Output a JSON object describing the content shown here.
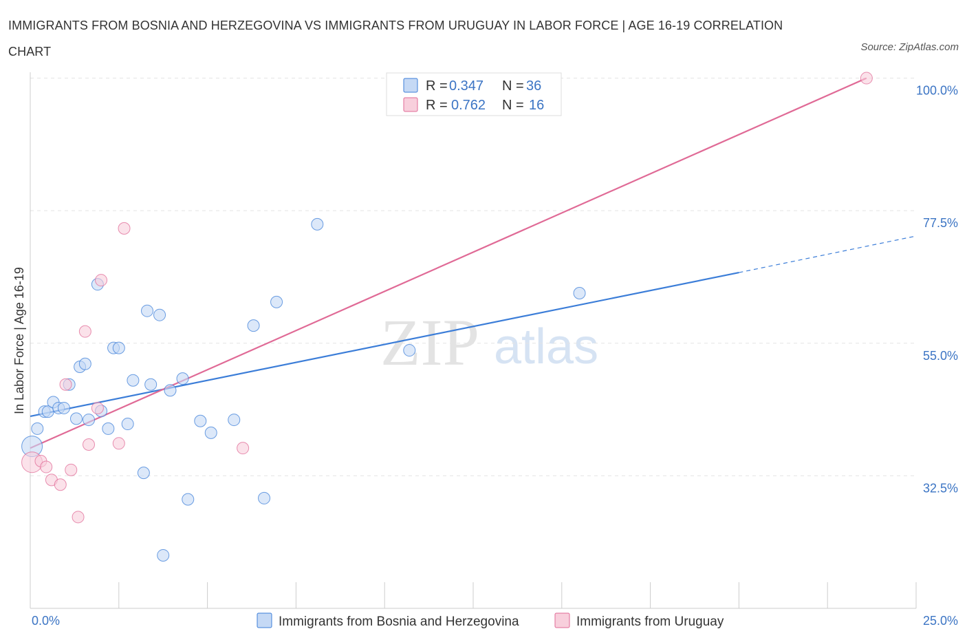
{
  "title": "IMMIGRANTS FROM BOSNIA AND HERZEGOVINA VS IMMIGRANTS FROM URUGUAY IN LABOR FORCE | AGE 16-19 CORRELATION CHART",
  "source": "Source: ZipAtlas.com",
  "watermark": {
    "zip": "ZIP",
    "atlas": "atlas"
  },
  "colors": {
    "blue": "#3b7dd8",
    "blue_fill": "#c5d9f5",
    "pink": "#e06a96",
    "pink_fill": "#f8cfdc",
    "axis_label": "#3b74c4"
  },
  "chart_data": {
    "type": "scatter",
    "title": "IMMIGRANTS FROM BOSNIA AND HERZEGOVINA VS IMMIGRANTS FROM URUGUAY IN LABOR FORCE | AGE 16-19 CORRELATION CHART",
    "xlabel": "",
    "ylabel": "In Labor Force | Age 16-19",
    "xlim": [
      0,
      25
    ],
    "ylim": [
      10,
      101
    ],
    "x_tick_labels": [
      {
        "value": 0,
        "label": "0.0%"
      },
      {
        "value": 25,
        "label": "25.0%"
      }
    ],
    "y_ticks": [
      {
        "value": 100,
        "label": "100.0%"
      },
      {
        "value": 77.5,
        "label": "77.5%"
      },
      {
        "value": 55,
        "label": "55.0%"
      },
      {
        "value": 32.5,
        "label": "32.5%"
      }
    ],
    "legend": [
      {
        "r_label": "R =",
        "r": "0.347",
        "n_label": "N =",
        "n": "36"
      },
      {
        "r_label": "R =",
        "r": "0.762",
        "n_label": "N =",
        "n": "16"
      }
    ],
    "series": [
      {
        "name": "Immigrants from Bosnia and Herzegovina",
        "color": "#3b7dd8",
        "trend": {
          "x0": 0,
          "y0": 42.6,
          "x1": 20,
          "y1": 67.0,
          "dash_to_x": 25,
          "dash_to_y": 73.2
        },
        "points": [
          {
            "x": 0.05,
            "y": 37.5,
            "big": true
          },
          {
            "x": 0.2,
            "y": 40.5
          },
          {
            "x": 0.4,
            "y": 43.4
          },
          {
            "x": 0.5,
            "y": 43.4
          },
          {
            "x": 0.65,
            "y": 45.0
          },
          {
            "x": 0.8,
            "y": 44.0
          },
          {
            "x": 0.95,
            "y": 44.0
          },
          {
            "x": 1.1,
            "y": 48.0
          },
          {
            "x": 1.3,
            "y": 42.2
          },
          {
            "x": 1.4,
            "y": 51.0
          },
          {
            "x": 1.55,
            "y": 51.5
          },
          {
            "x": 1.65,
            "y": 42.0
          },
          {
            "x": 1.9,
            "y": 65.0
          },
          {
            "x": 2.0,
            "y": 43.5
          },
          {
            "x": 2.2,
            "y": 40.5
          },
          {
            "x": 2.35,
            "y": 54.2
          },
          {
            "x": 2.5,
            "y": 54.2
          },
          {
            "x": 2.75,
            "y": 41.3
          },
          {
            "x": 2.9,
            "y": 48.7
          },
          {
            "x": 3.2,
            "y": 33.0
          },
          {
            "x": 3.3,
            "y": 60.5
          },
          {
            "x": 3.4,
            "y": 48.0
          },
          {
            "x": 3.65,
            "y": 59.8
          },
          {
            "x": 3.75,
            "y": 19.0
          },
          {
            "x": 3.95,
            "y": 47.0
          },
          {
            "x": 4.3,
            "y": 49.0
          },
          {
            "x": 4.45,
            "y": 28.5
          },
          {
            "x": 4.8,
            "y": 41.8
          },
          {
            "x": 5.1,
            "y": 39.8
          },
          {
            "x": 5.75,
            "y": 42.0
          },
          {
            "x": 6.3,
            "y": 58.0
          },
          {
            "x": 6.6,
            "y": 28.7
          },
          {
            "x": 6.95,
            "y": 62.0
          },
          {
            "x": 8.1,
            "y": 75.2
          },
          {
            "x": 10.7,
            "y": 53.8
          },
          {
            "x": 15.5,
            "y": 63.5
          }
        ]
      },
      {
        "name": "Immigrants from Uruguay",
        "color": "#e06a96",
        "trend": {
          "x0": 0,
          "y0": 37.2,
          "x1": 23.6,
          "y1": 100.0
        },
        "points": [
          {
            "x": 0.05,
            "y": 34.8,
            "big": true
          },
          {
            "x": 0.3,
            "y": 35.0
          },
          {
            "x": 0.45,
            "y": 34.0
          },
          {
            "x": 0.6,
            "y": 31.8
          },
          {
            "x": 0.85,
            "y": 31.0
          },
          {
            "x": 1.0,
            "y": 48.0
          },
          {
            "x": 1.15,
            "y": 33.5
          },
          {
            "x": 1.35,
            "y": 25.5
          },
          {
            "x": 1.55,
            "y": 57.0
          },
          {
            "x": 1.65,
            "y": 37.8
          },
          {
            "x": 1.9,
            "y": 44.0
          },
          {
            "x": 2.0,
            "y": 65.7
          },
          {
            "x": 2.5,
            "y": 38.0
          },
          {
            "x": 2.65,
            "y": 74.5
          },
          {
            "x": 6.0,
            "y": 37.2
          },
          {
            "x": 23.6,
            "y": 100.0
          }
        ]
      }
    ]
  }
}
